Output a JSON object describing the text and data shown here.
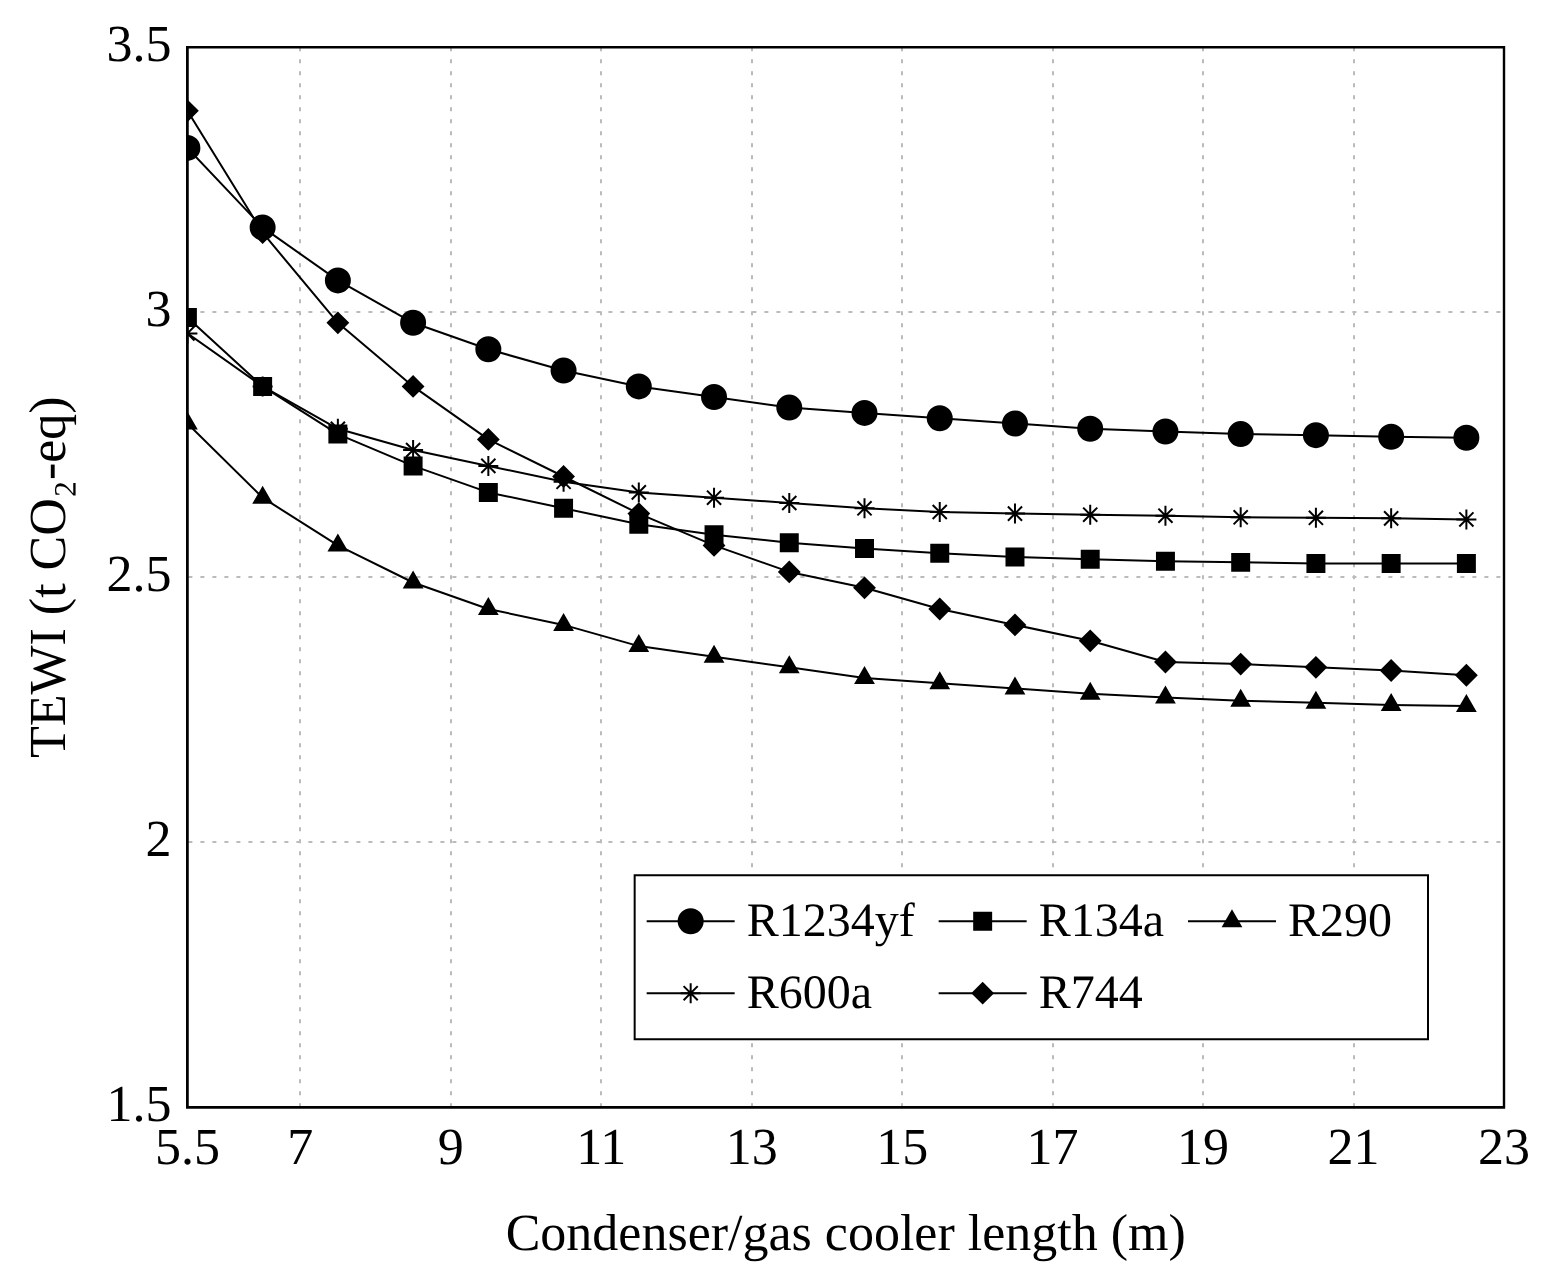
{
  "chart_data": {
    "type": "line",
    "xlabel": "Condenser/gas cooler length (m)",
    "ylabel": "TEWI (t CO₂-eq)",
    "x": [
      5.5,
      6.5,
      7.5,
      8.5,
      9.5,
      10.5,
      11.5,
      12.5,
      13.5,
      14.5,
      15.5,
      16.5,
      17.5,
      18.5,
      19.5,
      20.5,
      21.5,
      22.5
    ],
    "xlim": [
      5.5,
      23
    ],
    "xticks": [
      5.5,
      7,
      9,
      11,
      13,
      15,
      17,
      19,
      21,
      23
    ],
    "ylim": [
      1.5,
      3.5
    ],
    "yticks": [
      1.5,
      2,
      2.5,
      3,
      3.5
    ],
    "grid": true,
    "legend": "bottom right",
    "series": [
      {
        "name": "R1234yf",
        "color": "#000000",
        "marker": "circle",
        "values": [
          3.31,
          3.16,
          3.06,
          2.98,
          2.93,
          2.89,
          2.86,
          2.84,
          2.82,
          2.81,
          2.8,
          2.79,
          2.78,
          2.775,
          2.77,
          2.768,
          2.765,
          2.763
        ]
      },
      {
        "name": "R134a",
        "color": "#000000",
        "marker": "square",
        "values": [
          2.99,
          2.86,
          2.77,
          2.71,
          2.66,
          2.63,
          2.6,
          2.58,
          2.565,
          2.554,
          2.545,
          2.538,
          2.534,
          2.53,
          2.528,
          2.526,
          2.526,
          2.526
        ]
      },
      {
        "name": "R290",
        "color": "#000000",
        "marker": "triangle",
        "values": [
          2.79,
          2.65,
          2.56,
          2.49,
          2.44,
          2.41,
          2.37,
          2.35,
          2.33,
          2.31,
          2.3,
          2.29,
          2.28,
          2.273,
          2.267,
          2.263,
          2.259,
          2.257
        ]
      },
      {
        "name": "R600a",
        "color": "#000000",
        "marker": "cross",
        "values": [
          2.96,
          2.86,
          2.78,
          2.74,
          2.71,
          2.68,
          2.66,
          2.65,
          2.64,
          2.63,
          2.623,
          2.62,
          2.618,
          2.616,
          2.613,
          2.612,
          2.611,
          2.609
        ]
      },
      {
        "name": "R744",
        "color": "#000000",
        "marker": "diamond",
        "values": [
          3.38,
          3.15,
          2.98,
          2.86,
          2.76,
          2.69,
          2.62,
          2.56,
          2.51,
          2.48,
          2.44,
          2.41,
          2.38,
          2.34,
          2.336,
          2.33,
          2.324,
          2.315
        ]
      }
    ]
  }
}
